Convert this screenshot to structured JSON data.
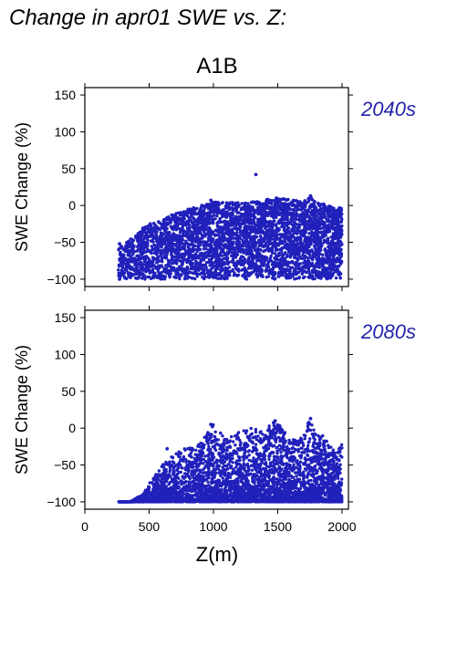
{
  "figure": {
    "title": "Change in apr01 SWE vs. Z:",
    "scenario": "A1B",
    "colors": {
      "points": "#2020bb",
      "period_label": "#2424aa",
      "axes": "#000000"
    }
  },
  "chart_data": [
    {
      "type": "scatter",
      "period_label": "2040s",
      "xlabel": "",
      "ylabel": "SWE Change (%)",
      "xlim": [
        0,
        2050
      ],
      "ylim": [
        -110,
        160
      ],
      "x_ticks": [
        0,
        500,
        1000,
        1500,
        2000
      ],
      "y_ticks": [
        150,
        100,
        50,
        0,
        -50,
        -100
      ],
      "x_tick_labels_shown": false,
      "grid": false,
      "envelope": {
        "x": [
          260,
          300,
          350,
          400,
          450,
          500,
          600,
          700,
          800,
          900,
          1000,
          1100,
          1200,
          1300,
          1400,
          1500,
          1600,
          1700,
          1750,
          1800,
          1850,
          1900,
          1950,
          2000
        ],
        "upper": [
          -55,
          -55,
          -45,
          -40,
          -30,
          -25,
          -20,
          -10,
          -5,
          0,
          5,
          5,
          5,
          5,
          8,
          10,
          8,
          5,
          13,
          5,
          3,
          0,
          -5,
          0
        ],
        "lower": [
          -100,
          -100,
          -100,
          -100,
          -100,
          -100,
          -100,
          -100,
          -100,
          -100,
          -100,
          -100,
          -100,
          -100,
          -100,
          -100,
          -100,
          -100,
          -100,
          -100,
          -100,
          -100,
          -100,
          -100
        ]
      },
      "highlight_points": [
        {
          "x": 1330,
          "y": 42
        },
        {
          "x": 1755,
          "y": 13
        },
        {
          "x": 1490,
          "y": 10
        },
        {
          "x": 980,
          "y": 7
        },
        {
          "x": 270,
          "y": -52
        },
        {
          "x": 270,
          "y": -100
        }
      ]
    },
    {
      "type": "scatter",
      "period_label": "2080s",
      "xlabel": "Z(m)",
      "ylabel": "SWE Change (%)",
      "xlim": [
        0,
        2050
      ],
      "ylim": [
        -110,
        160
      ],
      "x_ticks": [
        0,
        500,
        1000,
        1500,
        2000
      ],
      "y_ticks": [
        150,
        100,
        50,
        0,
        -50,
        -100
      ],
      "x_tick_labels_shown": true,
      "grid": false,
      "envelope": {
        "x": [
          260,
          350,
          450,
          500,
          600,
          700,
          800,
          900,
          1000,
          1100,
          1200,
          1300,
          1400,
          1450,
          1500,
          1600,
          1700,
          1750,
          1800,
          1850,
          1900,
          1950,
          2000
        ],
        "upper": [
          -100,
          -100,
          -90,
          -75,
          -50,
          -35,
          -25,
          -20,
          5,
          -15,
          -5,
          0,
          -5,
          10,
          8,
          -15,
          -10,
          13,
          -10,
          -5,
          -20,
          -35,
          -20
        ],
        "lower": [
          -100,
          -100,
          -100,
          -100,
          -100,
          -100,
          -100,
          -100,
          -100,
          -100,
          -100,
          -100,
          -100,
          -100,
          -100,
          -100,
          -100,
          -100,
          -100,
          -100,
          -100,
          -100,
          -100
        ]
      },
      "highlight_points": [
        {
          "x": 1755,
          "y": 13
        },
        {
          "x": 1480,
          "y": 10
        },
        {
          "x": 980,
          "y": 5
        },
        {
          "x": 640,
          "y": -28
        },
        {
          "x": 270,
          "y": -100
        }
      ]
    }
  ]
}
